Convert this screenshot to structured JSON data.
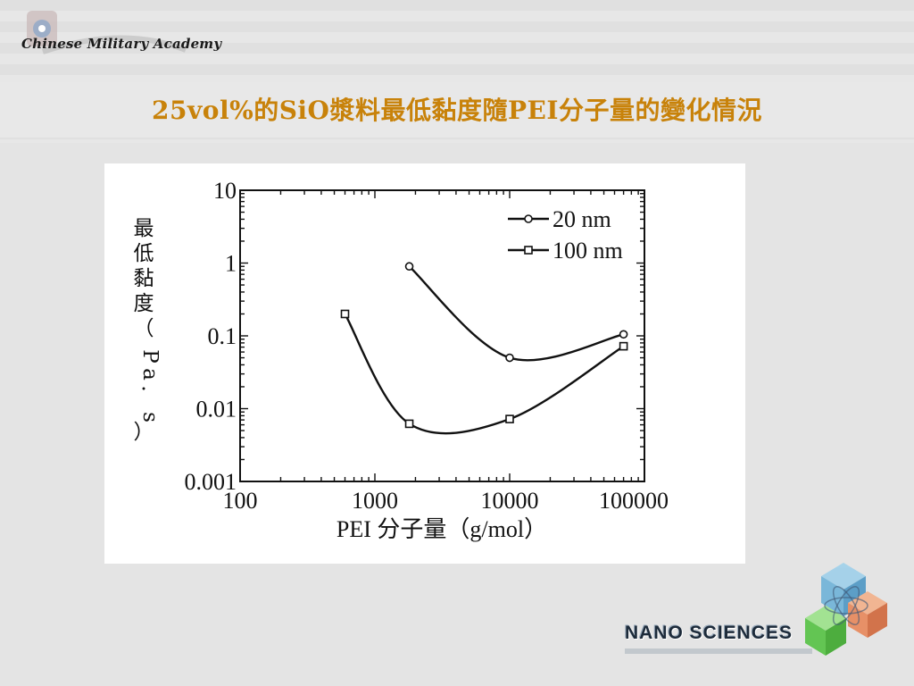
{
  "header": {
    "logo_text": "Chinese Military Academy",
    "title": "25vol%的SiO漿料最低黏度隨PEI分子量的變化情況"
  },
  "footer": {
    "brand_text": "NANO SCIENCES",
    "brand_icon": "molecule-cubes-icon"
  },
  "chart_data": {
    "type": "line",
    "x_scale": "log",
    "y_scale": "log",
    "xlim": [
      100,
      100000
    ],
    "ylim": [
      0.001,
      10
    ],
    "xticks": [
      "100",
      "1000",
      "10000",
      "100000"
    ],
    "yticks": [
      "10",
      "1",
      "0.1",
      "0.01",
      "0.001"
    ],
    "xlabel": "PEI 分子量（g/mol）",
    "ylabel": "最低黏度（Pa·s）",
    "legend_position": "top-right",
    "series": [
      {
        "name": "20 nm",
        "marker": "circle",
        "x": [
          1800,
          10000,
          70000
        ],
        "y": [
          0.9,
          0.05,
          0.105
        ]
      },
      {
        "name": "100 nm",
        "marker": "square",
        "x": [
          600,
          1800,
          10000,
          70000
        ],
        "y": [
          0.2,
          0.0062,
          0.0072,
          0.072
        ]
      }
    ]
  }
}
